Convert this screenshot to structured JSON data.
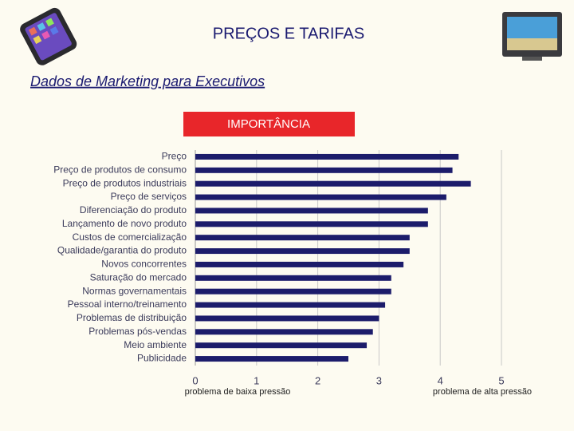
{
  "header": {
    "title": "PREÇOS E TARIFAS",
    "subtitle": "Dados de Marketing para Executivos"
  },
  "chart_data": {
    "type": "hbar",
    "title": "IMPORTÂNCIA",
    "categories": [
      "Preço",
      "Preço de produtos de consumo",
      "Preço de produtos industriais",
      "Preço de serviços",
      "Diferenciação do produto",
      "Lançamento de novo produto",
      "Custos de comercialização",
      "Qualidade/garantia do produto",
      "Novos concorrentes",
      "Saturação do mercado",
      "Normas governamentais",
      "Pessoal interno/treinamento",
      "Problemas de distribuição",
      "Problemas pós-vendas",
      "Meio ambiente",
      "Publicidade"
    ],
    "values": [
      4.3,
      4.2,
      4.5,
      4.1,
      3.8,
      3.8,
      3.5,
      3.5,
      3.4,
      3.2,
      3.2,
      3.1,
      3.0,
      2.9,
      2.8,
      2.5
    ],
    "color": "#1c1c6b",
    "xlim": [
      0,
      5
    ],
    "xticks": [
      0,
      1,
      2,
      3,
      4,
      5
    ],
    "grid": true,
    "annotations": [
      "problema de baixa pressão",
      "problema de alta pressão"
    ]
  }
}
